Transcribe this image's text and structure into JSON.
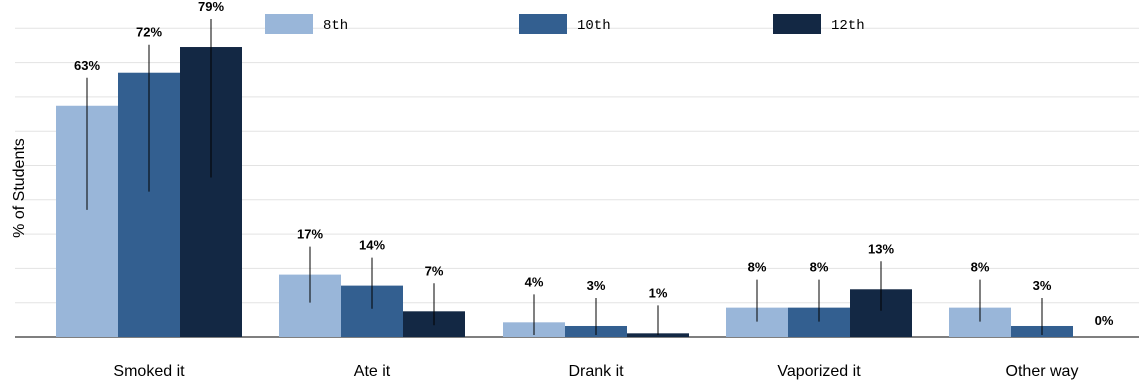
{
  "chart_data": {
    "type": "bar",
    "ylabel": "% of Students",
    "ylim": [
      0,
      85
    ],
    "grid": true,
    "legend_position": "top",
    "categories": [
      "Smoked it",
      "Ate it",
      "Drank it",
      "Vaporized it",
      "Other way"
    ],
    "series": [
      {
        "name": "8th",
        "color": "#99b6d9",
        "values": [
          63,
          17,
          4,
          8,
          8
        ],
        "labels": [
          "63%",
          "17%",
          "4%",
          "8%",
          "8%"
        ]
      },
      {
        "name": "10th",
        "color": "#335f90",
        "values": [
          72,
          14,
          3,
          8,
          3
        ],
        "labels": [
          "72%",
          "14%",
          "3%",
          "8%",
          "3%"
        ]
      },
      {
        "name": "12th",
        "color": "#132844",
        "values": [
          79,
          7,
          1,
          13,
          0
        ],
        "labels": [
          "79%",
          "7%",
          "1%",
          "13%",
          "0%"
        ]
      }
    ]
  }
}
